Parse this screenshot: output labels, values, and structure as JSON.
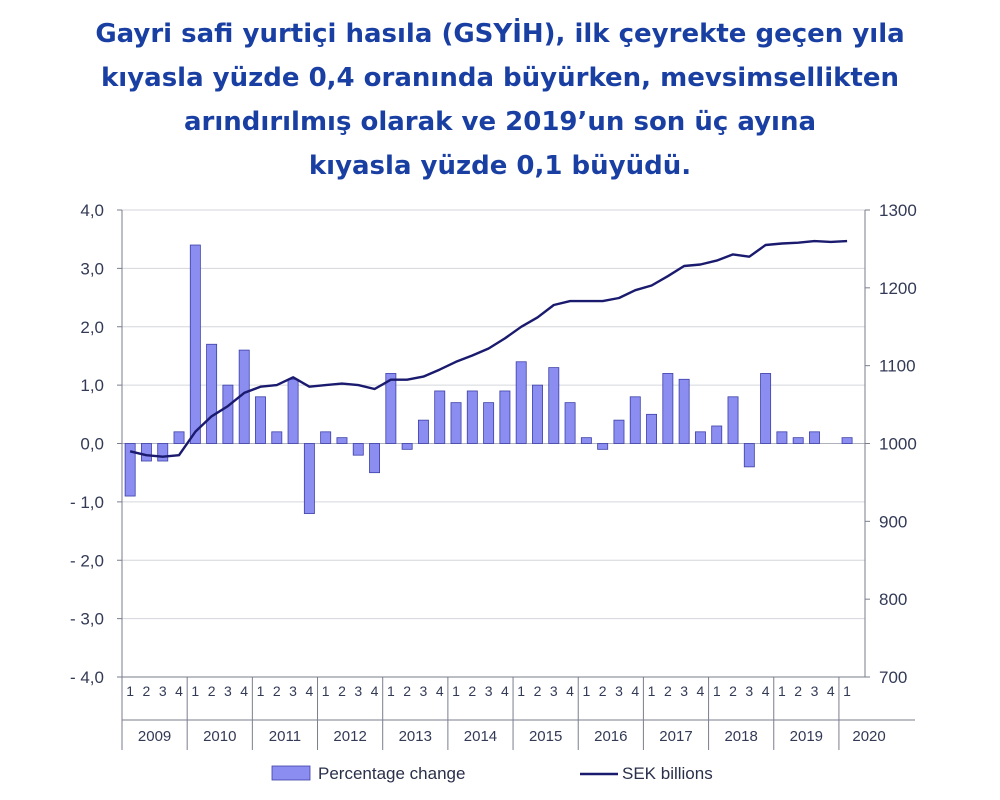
{
  "title_lines": [
    "Gayri safi yurtiçi hasıla (GSYİH), ilk çeyrekte geçen yıla",
    "kıyasla yüzde 0,4 oranında büyürken, mevsimsellikten",
    "arındırılmış olarak ve 2019’un son üç ayına",
    "kıyasla yüzde 0,1 büyüdü."
  ],
  "chart_data": {
    "type": "bar+line",
    "years": [
      "2009",
      "2010",
      "2011",
      "2012",
      "2013",
      "2014",
      "2015",
      "2016",
      "2017",
      "2018",
      "2019",
      "2020"
    ],
    "quarters_per_year": [
      4,
      4,
      4,
      4,
      4,
      4,
      4,
      4,
      4,
      4,
      4,
      1
    ],
    "quarter_labels": [
      "1",
      "2",
      "3",
      "4"
    ],
    "y_left": {
      "range": [
        -4.0,
        4.0
      ],
      "ticks": [
        "4,0",
        "3,0",
        "2,0",
        "1,0",
        "0,0",
        "- 1,0",
        "- 2,0",
        "- 3,0",
        "- 4,0"
      ]
    },
    "y_right": {
      "range": [
        700,
        1300
      ],
      "ticks": [
        "1300",
        "1200",
        "1100",
        "1000",
        "900",
        "800",
        "700"
      ]
    },
    "series": [
      {
        "name": "Percentage change",
        "kind": "bar",
        "color": "#8b8ef0",
        "values": [
          -0.9,
          -0.3,
          -0.3,
          0.2,
          3.4,
          1.7,
          1.0,
          1.6,
          0.8,
          0.2,
          1.1,
          -1.2,
          0.2,
          0.1,
          -0.2,
          -0.5,
          1.2,
          -0.1,
          0.4,
          0.9,
          0.7,
          0.9,
          0.7,
          0.9,
          1.4,
          1.0,
          1.3,
          0.7,
          0.1,
          -0.1,
          0.4,
          0.8,
          0.5,
          1.2,
          1.1,
          0.2,
          0.3,
          0.8,
          -0.4,
          1.2,
          0.2,
          0.1,
          0.2,
          0.0,
          0.1
        ]
      },
      {
        "name": "SEK billions",
        "kind": "line",
        "color": "#1a1a6e",
        "values": [
          990,
          985,
          983,
          985,
          1015,
          1035,
          1048,
          1065,
          1073,
          1075,
          1085,
          1073,
          1075,
          1077,
          1075,
          1070,
          1082,
          1082,
          1086,
          1095,
          1105,
          1113,
          1122,
          1135,
          1150,
          1162,
          1178,
          1183,
          1183,
          1183,
          1187,
          1197,
          1203,
          1215,
          1228,
          1230,
          1235,
          1243,
          1240,
          1255,
          1257,
          1258,
          1260,
          1259,
          1260
        ]
      }
    ],
    "grid": true,
    "legend": "bottom"
  }
}
